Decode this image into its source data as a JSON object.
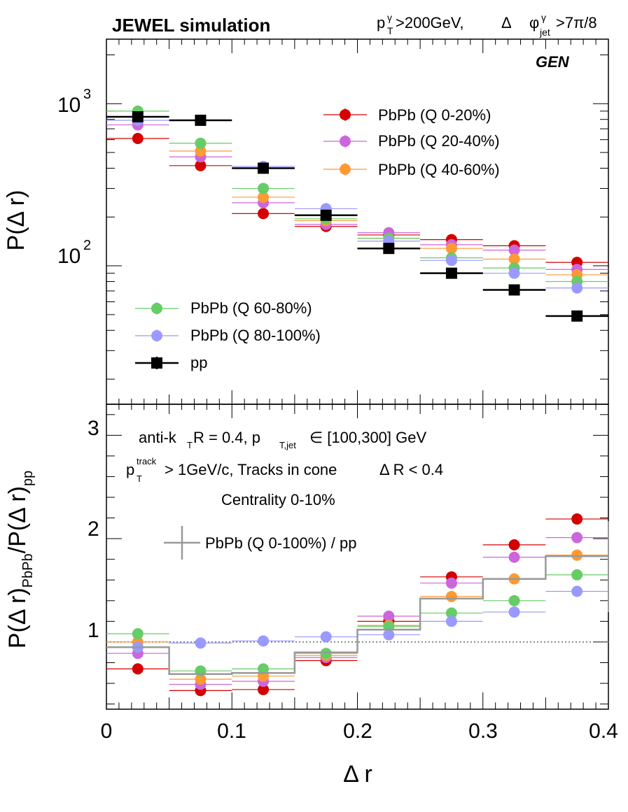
{
  "header": {
    "title": "JEWEL simulation",
    "cuts": {
      "pt_sym": "p",
      "pt_sup": "γ",
      "pt_sub": "T",
      "pt_rest": ">200GeV,",
      "dphi_sym": "Δ",
      "phi_sym": "φ",
      "phi_sup": "γ",
      "phi_sub": "jet",
      "phi_rest": ">7π/8"
    },
    "gen_label": "GEN"
  },
  "colors": {
    "q0_20": "#d40000",
    "q20_40": "#cc66dd",
    "q40_60": "#ff9933",
    "q60_80": "#66cc66",
    "q80_100": "#9999ff",
    "pp": "#000000",
    "ratio_all": "#999999"
  },
  "chart_data": [
    {
      "type": "scatter",
      "panel": "top",
      "ylog": true,
      "ylabel": "P(Δ r)",
      "ylim": [
        14,
        2500
      ],
      "xlim": [
        0,
        0.4
      ],
      "yticks": [
        {
          "v": 100,
          "base": "10",
          "exp": "2"
        },
        {
          "v": 1000,
          "base": "10",
          "exp": "3"
        }
      ],
      "bin_edges": [
        0,
        0.05,
        0.1,
        0.15,
        0.2,
        0.25,
        0.3,
        0.35,
        0.4
      ],
      "series": [
        {
          "key": "q0_20",
          "name": "PbPb (Q 0-20%)",
          "marker": "circle",
          "values": [
            610,
            415,
            210,
            175,
            155,
            145,
            133,
            105
          ]
        },
        {
          "key": "q20_40",
          "name": "PbPb (Q 20-40%)",
          "marker": "circle",
          "values": [
            740,
            470,
            245,
            180,
            160,
            135,
            125,
            95
          ]
        },
        {
          "key": "q40_60",
          "name": "PbPb (Q 40-60%)",
          "marker": "circle",
          "values": [
            830,
            510,
            265,
            190,
            148,
            128,
            110,
            88
          ]
        },
        {
          "key": "q60_80",
          "name": "PbPb (Q 60-80%)",
          "marker": "circle",
          "values": [
            900,
            570,
            300,
            195,
            148,
            112,
            97,
            80
          ]
        },
        {
          "key": "q80_100",
          "name": "PbPb (Q 80-100%)",
          "marker": "circle",
          "values": [
            790,
            790,
            410,
            225,
            142,
            108,
            90,
            73
          ]
        },
        {
          "key": "pp",
          "name": "pp",
          "marker": "square",
          "values": [
            830,
            790,
            400,
            205,
            128,
            90,
            71,
            49
          ]
        }
      ]
    },
    {
      "type": "scatter",
      "panel": "bottom",
      "ylabel": "P(Δ r)PbPb/P(Δ r)pp",
      "ylabel_parts": {
        "main": "P(Δ r)",
        "sub1": "PbPb",
        "mid": "/P(Δ r)",
        "sub2": "pp"
      },
      "xlabel": "Δ r",
      "xlim": [
        0,
        0.4
      ],
      "ylim": [
        0.35,
        3.3
      ],
      "yticks": [
        1,
        2,
        3
      ],
      "xticks": [
        0,
        0.1,
        0.2,
        0.3,
        0.4
      ],
      "xtick_labels": [
        "0",
        "0.1",
        "0.2",
        "0.3",
        "0.4"
      ],
      "ytick_labels": [
        "1",
        "2",
        "3"
      ],
      "reference_line": 1,
      "bin_edges": [
        0,
        0.05,
        0.1,
        0.15,
        0.2,
        0.25,
        0.3,
        0.35,
        0.4
      ],
      "series": [
        {
          "key": "q0_20",
          "name": "PbPb (Q 0-20%)",
          "values": [
            0.74,
            0.53,
            0.54,
            0.82,
            1.2,
            1.63,
            1.94,
            2.19
          ]
        },
        {
          "key": "q20_40",
          "name": "PbPb (Q 20-40%)",
          "values": [
            0.89,
            0.59,
            0.62,
            0.85,
            1.25,
            1.57,
            1.82,
            2.01
          ]
        },
        {
          "key": "q40_60",
          "name": "PbPb (Q 40-60%)",
          "values": [
            1.0,
            0.64,
            0.67,
            0.87,
            1.16,
            1.44,
            1.61,
            1.84
          ]
        },
        {
          "key": "q60_80",
          "name": "PbPb (Q 60-80%)",
          "values": [
            1.08,
            0.72,
            0.74,
            0.89,
            1.15,
            1.28,
            1.4,
            1.65
          ]
        },
        {
          "key": "q80_100",
          "name": "PbPb (Q 80-100%)",
          "values": [
            0.95,
            0.99,
            1.01,
            1.05,
            1.07,
            1.2,
            1.29,
            1.49
          ]
        },
        {
          "key": "ratio_all",
          "name": "PbPb (Q 0-100%) / pp",
          "style": "histogram",
          "values": [
            0.95,
            0.69,
            0.7,
            0.9,
            1.12,
            1.42,
            1.61,
            1.83
          ]
        }
      ],
      "annotations": {
        "line1": {
          "a": "anti-k",
          "a_sub": "T",
          "b": " R = 0.4, p",
          "b_sub": "T,jet",
          "c": "∈ [100,300] GeV"
        },
        "line2": {
          "a": "p",
          "a_sup": "track",
          "a_sub": "T",
          "b": " > 1GeV/c, Tracks in cone",
          "c": "Δ R < 0.4"
        },
        "line3": "Centrality 0-10%"
      }
    }
  ]
}
